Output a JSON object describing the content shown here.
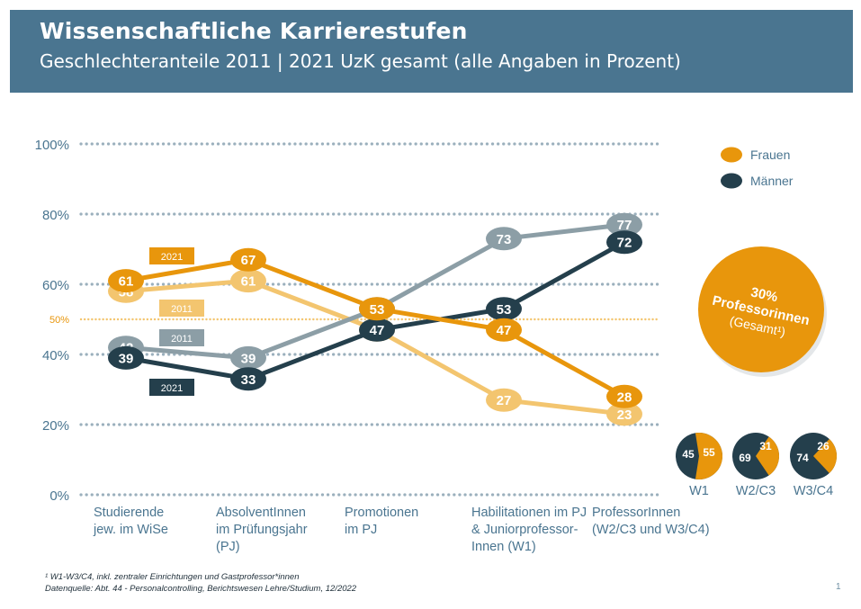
{
  "header": {
    "title": "Wissenschaftliche Karrierestufen",
    "subtitle": "Geschlechteranteile 2011 | 2021 UzK gesamt (alle Angaben in Prozent)"
  },
  "colors": {
    "header_bg": "#4a7590",
    "frauen_2021": "#e8960c",
    "frauen_2011": "#f3c56f",
    "maenner_2021": "#243f4c",
    "maenner_2011": "#8c9ea6",
    "grid": "#9bb0bd",
    "axis_text": "#4a7590"
  },
  "chart_data": {
    "type": "line",
    "categories": [
      [
        "Studierende",
        "jew. im WiSe"
      ],
      [
        "AbsolventInnen",
        "im Prüfungsjahr",
        "(PJ)"
      ],
      [
        "Promotionen",
        "im PJ"
      ],
      [
        "Habilitationen im PJ",
        "& Juniorprofessor-",
        "Innen (W1)"
      ],
      [
        "ProfessorInnen",
        "(W2/C3 und W3/C4)"
      ]
    ],
    "ylim": [
      0,
      100
    ],
    "yticks": [
      "0%",
      "20%",
      "40%",
      "60%",
      "80%",
      "100%"
    ],
    "ytick_values": [
      0,
      20,
      40,
      60,
      80,
      100
    ],
    "reference_line": {
      "value": 50,
      "label": "50%"
    },
    "series": [
      {
        "key": "frauen_2011",
        "values": [
          58,
          61,
          47,
          27,
          23
        ]
      },
      {
        "key": "maenner_2011",
        "values": [
          42,
          39,
          53,
          73,
          77
        ]
      },
      {
        "key": "maenner_2021",
        "values": [
          39,
          33,
          47,
          53,
          72
        ]
      },
      {
        "key": "frauen_2021",
        "values": [
          61,
          67,
          53,
          47,
          28
        ]
      }
    ],
    "year_tags": [
      {
        "text": "2021",
        "series": "frauen_2021"
      },
      {
        "text": "2011",
        "series": "frauen_2011"
      },
      {
        "text": "2011",
        "series": "maenner_2011"
      },
      {
        "text": "2021",
        "series": "maenner_2021"
      }
    ],
    "legend": {
      "placement": "top-right",
      "items": [
        {
          "name": "Frauen",
          "color_key": "frauen_2021"
        },
        {
          "name": "Männer",
          "color_key": "maenner_2021"
        }
      ]
    },
    "callout": {
      "line1": "30%",
      "line2": "Professorinnen",
      "line3": "(Gesamt¹)"
    },
    "pies": [
      {
        "label": "W1",
        "maenner": 45,
        "frauen": 55
      },
      {
        "label": "W2/C3",
        "maenner": 69,
        "frauen": 31
      },
      {
        "label": "W3/C4",
        "maenner": 74,
        "frauen": 26
      }
    ]
  },
  "footnotes": [
    "¹ W1-W3/C4, inkl. zentraler Einrichtungen und Gastprofessor*innen",
    "Datenquelle: Abt. 44 - Personalcontrolling, Berichtswesen Lehre/Studium, 12/2022"
  ],
  "page_number": "1"
}
